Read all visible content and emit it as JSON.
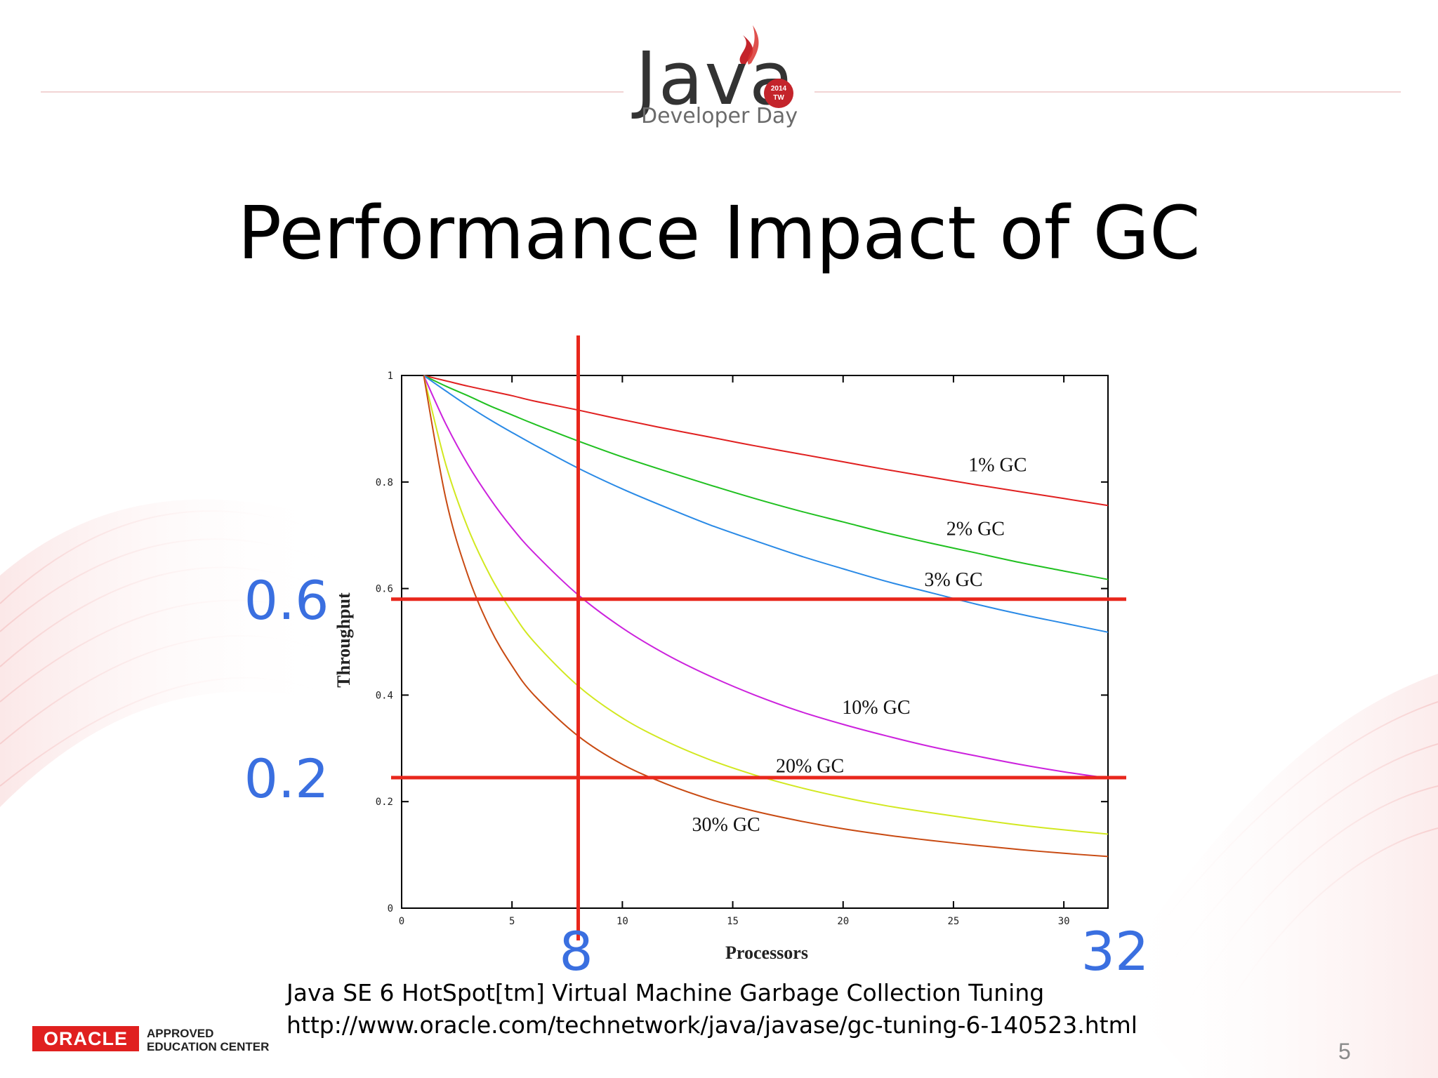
{
  "header": {
    "logo_word": "Java",
    "logo_badge_year": "2014",
    "logo_badge_region": "TW",
    "logo_subtitle": "Developer Day"
  },
  "slide": {
    "title": "Performance Impact of GC",
    "page_number": "5"
  },
  "caption": {
    "line1": "Java SE 6 HotSpot[tm] Virtual Machine Garbage Collection Tuning",
    "line2": "http://www.oracle.com/technetwork/java/javase/gc-tuning-6-140523.html"
  },
  "footer": {
    "oracle_brand": "ORACLE",
    "oracle_line1": "APPROVED",
    "oracle_line2": "EDUCATION CENTER"
  },
  "colors": {
    "accent_red": "#e8271c",
    "annotation_blue": "#3a6fe0",
    "brand_red": "#e0201f"
  },
  "chart_data": {
    "type": "line",
    "title": "",
    "xlabel": "Processors",
    "ylabel": "Throughput",
    "xlim": [
      0,
      32
    ],
    "ylim": [
      0,
      1
    ],
    "grid": false,
    "x_ticks": [
      "0",
      "5",
      "10",
      "15",
      "20",
      "25",
      "30"
    ],
    "y_ticks": [
      "0",
      "0.2",
      "0.4",
      "0.6",
      "0.8",
      "1"
    ],
    "x": [
      1,
      2,
      3,
      4,
      5,
      6,
      8,
      10,
      12,
      14,
      16,
      18,
      20,
      22,
      24,
      26,
      28,
      30,
      32
    ],
    "series": [
      {
        "name": "1% GC",
        "color": "#e02020",
        "label_at": [
          27,
          0.82
        ],
        "values": [
          1.0,
          0.99,
          0.98,
          0.971,
          0.962,
          0.952,
          0.935,
          0.917,
          0.9,
          0.884,
          0.868,
          0.853,
          0.838,
          0.823,
          0.809,
          0.795,
          0.782,
          0.769,
          0.756
        ]
      },
      {
        "name": "2% GC",
        "color": "#20c020",
        "label_at": [
          26,
          0.7
        ],
        "values": [
          1.0,
          0.98,
          0.962,
          0.943,
          0.926,
          0.909,
          0.877,
          0.847,
          0.82,
          0.794,
          0.769,
          0.746,
          0.725,
          0.704,
          0.685,
          0.667,
          0.649,
          0.633,
          0.617
        ]
      },
      {
        "name": "3% GC",
        "color": "#2a8ae6",
        "label_at": [
          25,
          0.605
        ],
        "values": [
          1.0,
          0.971,
          0.943,
          0.917,
          0.893,
          0.87,
          0.826,
          0.787,
          0.752,
          0.719,
          0.69,
          0.662,
          0.637,
          0.613,
          0.592,
          0.571,
          0.552,
          0.535,
          0.518
        ]
      },
      {
        "name": "10% GC",
        "color": "#cc22dd",
        "label_at": [
          21.5,
          0.365
        ],
        "values": [
          1.0,
          0.909,
          0.833,
          0.769,
          0.714,
          0.667,
          0.588,
          0.526,
          0.476,
          0.435,
          0.4,
          0.37,
          0.345,
          0.323,
          0.303,
          0.286,
          0.27,
          0.256,
          0.244
        ]
      },
      {
        "name": "20% GC",
        "color": "#d2e820",
        "label_at": [
          18.5,
          0.255
        ],
        "values": [
          1.0,
          0.833,
          0.714,
          0.625,
          0.556,
          0.5,
          0.417,
          0.357,
          0.313,
          0.278,
          0.25,
          0.227,
          0.208,
          0.192,
          0.179,
          0.167,
          0.156,
          0.147,
          0.139
        ]
      },
      {
        "name": "30% GC",
        "color": "#c84a12",
        "label_at": [
          14.7,
          0.145
        ],
        "values": [
          1.0,
          0.769,
          0.625,
          0.526,
          0.455,
          0.4,
          0.323,
          0.27,
          0.233,
          0.204,
          0.182,
          0.164,
          0.149,
          0.137,
          0.127,
          0.118,
          0.11,
          0.103,
          0.097
        ]
      }
    ],
    "annotations": {
      "hlines": [
        0.58,
        0.245
      ],
      "vline": 8,
      "y_callouts": [
        "0.6",
        "0.2"
      ],
      "x_callouts": [
        "8",
        "32"
      ]
    }
  }
}
